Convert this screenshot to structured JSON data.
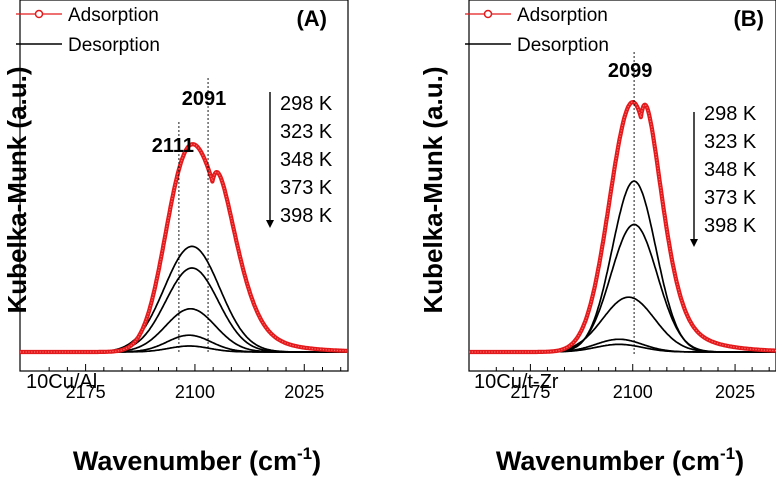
{
  "chart_data": [
    {
      "type": "line",
      "panel_label": "(A)",
      "sample": "10Cu/Al",
      "xlabel_main": "Wavenumber (cm",
      "xlabel_sup": "-1",
      "xlabel_close": ")",
      "ylabel": "Kubelka-Munk (a.u.)",
      "x_reversed": true,
      "xlim": [
        2220,
        1995
      ],
      "ylim": [
        0,
        1
      ],
      "xticks": [
        2175,
        2100,
        2025
      ],
      "legend": [
        {
          "name": "Adsorption",
          "color": "#e31a1c",
          "marker": "circle"
        },
        {
          "name": "Desorption",
          "color": "#000000",
          "marker": "none"
        }
      ],
      "peak_labels": [
        {
          "text": "2111",
          "x": 2111
        },
        {
          "text": "2091",
          "x": 2091
        }
      ],
      "temperatures": [
        "298 K",
        "323 K",
        "348 K",
        "373 K",
        "398 K"
      ],
      "series": [
        {
          "name": "Adsorption",
          "kind": "adsorption",
          "peaks": [
            {
              "c": 2111,
              "amp": 0.36,
              "w": 13
            },
            {
              "c": 2093,
              "amp": 0.66,
              "w": 18
            }
          ],
          "tail": {
            "amp": 0.3,
            "rate": 0.045,
            "start": 2088
          }
        },
        {
          "name": "Desorption 1",
          "kind": "desorption",
          "peaks": [
            {
              "c": 2102,
              "amp": 0.44,
              "w": 19
            }
          ]
        },
        {
          "name": "Desorption 2",
          "kind": "desorption",
          "peaks": [
            {
              "c": 2102,
              "amp": 0.35,
              "w": 18
            }
          ]
        },
        {
          "name": "Desorption 3",
          "kind": "desorption",
          "peaks": [
            {
              "c": 2103,
              "amp": 0.18,
              "w": 17
            }
          ]
        },
        {
          "name": "Desorption 4",
          "kind": "desorption",
          "peaks": [
            {
              "c": 2104,
              "amp": 0.07,
              "w": 15
            }
          ]
        },
        {
          "name": "Desorption 5",
          "kind": "desorption",
          "peaks": [
            {
              "c": 2104,
              "amp": 0.025,
              "w": 14
            }
          ]
        }
      ]
    },
    {
      "type": "line",
      "panel_label": "(B)",
      "sample": "10Cu/t-Zr",
      "xlabel_main": "Wavenumber (cm",
      "xlabel_sup": "-1",
      "xlabel_close": ")",
      "ylabel": "Kubelka-Munk (a.u.)",
      "x_reversed": true,
      "xlim": [
        2220,
        1995
      ],
      "ylim": [
        0,
        1
      ],
      "xticks": [
        2175,
        2100,
        2025
      ],
      "legend": [
        {
          "name": "Adsorption",
          "color": "#e31a1c",
          "marker": "circle"
        },
        {
          "name": "Desorption",
          "color": "#000000",
          "marker": "none"
        }
      ],
      "peak_labels": [
        {
          "text": "2099",
          "x": 2099
        }
      ],
      "temperatures": [
        "298 K",
        "323 K",
        "348 K",
        "373 K",
        "398 K"
      ],
      "series": [
        {
          "name": "Adsorption",
          "kind": "adsorption",
          "peaks": [
            {
              "c": 2100,
              "amp": 0.98,
              "w": 17
            }
          ],
          "tail": {
            "amp": 0.34,
            "rate": 0.042,
            "start": 2094
          }
        },
        {
          "name": "Desorption 1",
          "kind": "desorption",
          "peaks": [
            {
              "c": 2099,
              "amp": 0.67,
              "w": 16
            }
          ]
        },
        {
          "name": "Desorption 2",
          "kind": "desorption",
          "peaks": [
            {
              "c": 2099,
              "amp": 0.5,
              "w": 17
            }
          ]
        },
        {
          "name": "Desorption 3",
          "kind": "desorption",
          "peaks": [
            {
              "c": 2103,
              "amp": 0.215,
              "w": 19
            }
          ]
        },
        {
          "name": "Desorption 4",
          "kind": "desorption",
          "peaks": [
            {
              "c": 2110,
              "amp": 0.05,
              "w": 17
            }
          ]
        },
        {
          "name": "Desorption 5",
          "kind": "desorption",
          "peaks": [
            {
              "c": 2110,
              "amp": 0.03,
              "w": 17
            }
          ]
        }
      ]
    }
  ]
}
